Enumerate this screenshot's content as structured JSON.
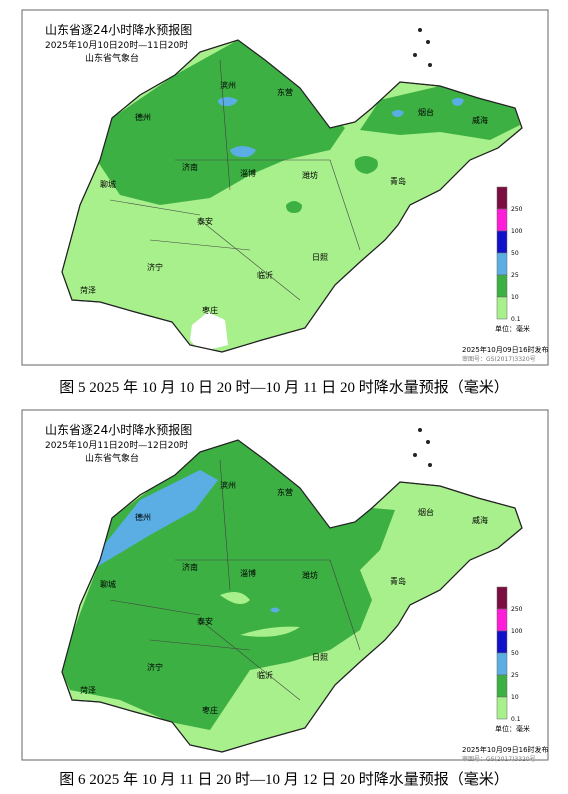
{
  "figures": [
    {
      "title": "山东省逐24小时降水预报图",
      "period": "2025年10月10日20时—11日20时",
      "agency": "山东省气象台",
      "cities": [
        "滨州",
        "东营",
        "烟台",
        "威海",
        "德州",
        "济南",
        "淄博",
        "潍坊",
        "青岛",
        "聊城",
        "泰安",
        "日照",
        "济宁",
        "临沂",
        "菏泽",
        "枣庄"
      ],
      "legend": {
        "labels": [
          "250",
          "100",
          "50",
          "25",
          "10",
          "0.1"
        ],
        "unit": "单位：毫米"
      },
      "issued": "2025年10月09日16时发布",
      "approval": "审图号：GS(2017)3320号",
      "caption": "图 5 2025 年 10 月 10 日 20 时—10 月 11 日 20 时降水量预报（毫米）"
    },
    {
      "title": "山东省逐24小时降水预报图",
      "period": "2025年10月11日20时—12日20时",
      "agency": "山东省气象台",
      "cities": [
        "滨州",
        "东营",
        "烟台",
        "威海",
        "德州",
        "济南",
        "淄博",
        "潍坊",
        "青岛",
        "聊城",
        "泰安",
        "日照",
        "济宁",
        "临沂",
        "菏泽",
        "枣庄"
      ],
      "legend": {
        "labels": [
          "250",
          "100",
          "50",
          "25",
          "10",
          "0.1"
        ],
        "unit": "单位：毫米"
      },
      "issued": "2025年10月09日16时发布",
      "approval": "审图号：GS(2017)3320号",
      "caption": "图 6 2025 年 10 月 11 日 20 时—10 月 12 日 20 时降水量预报（毫米）"
    }
  ]
}
